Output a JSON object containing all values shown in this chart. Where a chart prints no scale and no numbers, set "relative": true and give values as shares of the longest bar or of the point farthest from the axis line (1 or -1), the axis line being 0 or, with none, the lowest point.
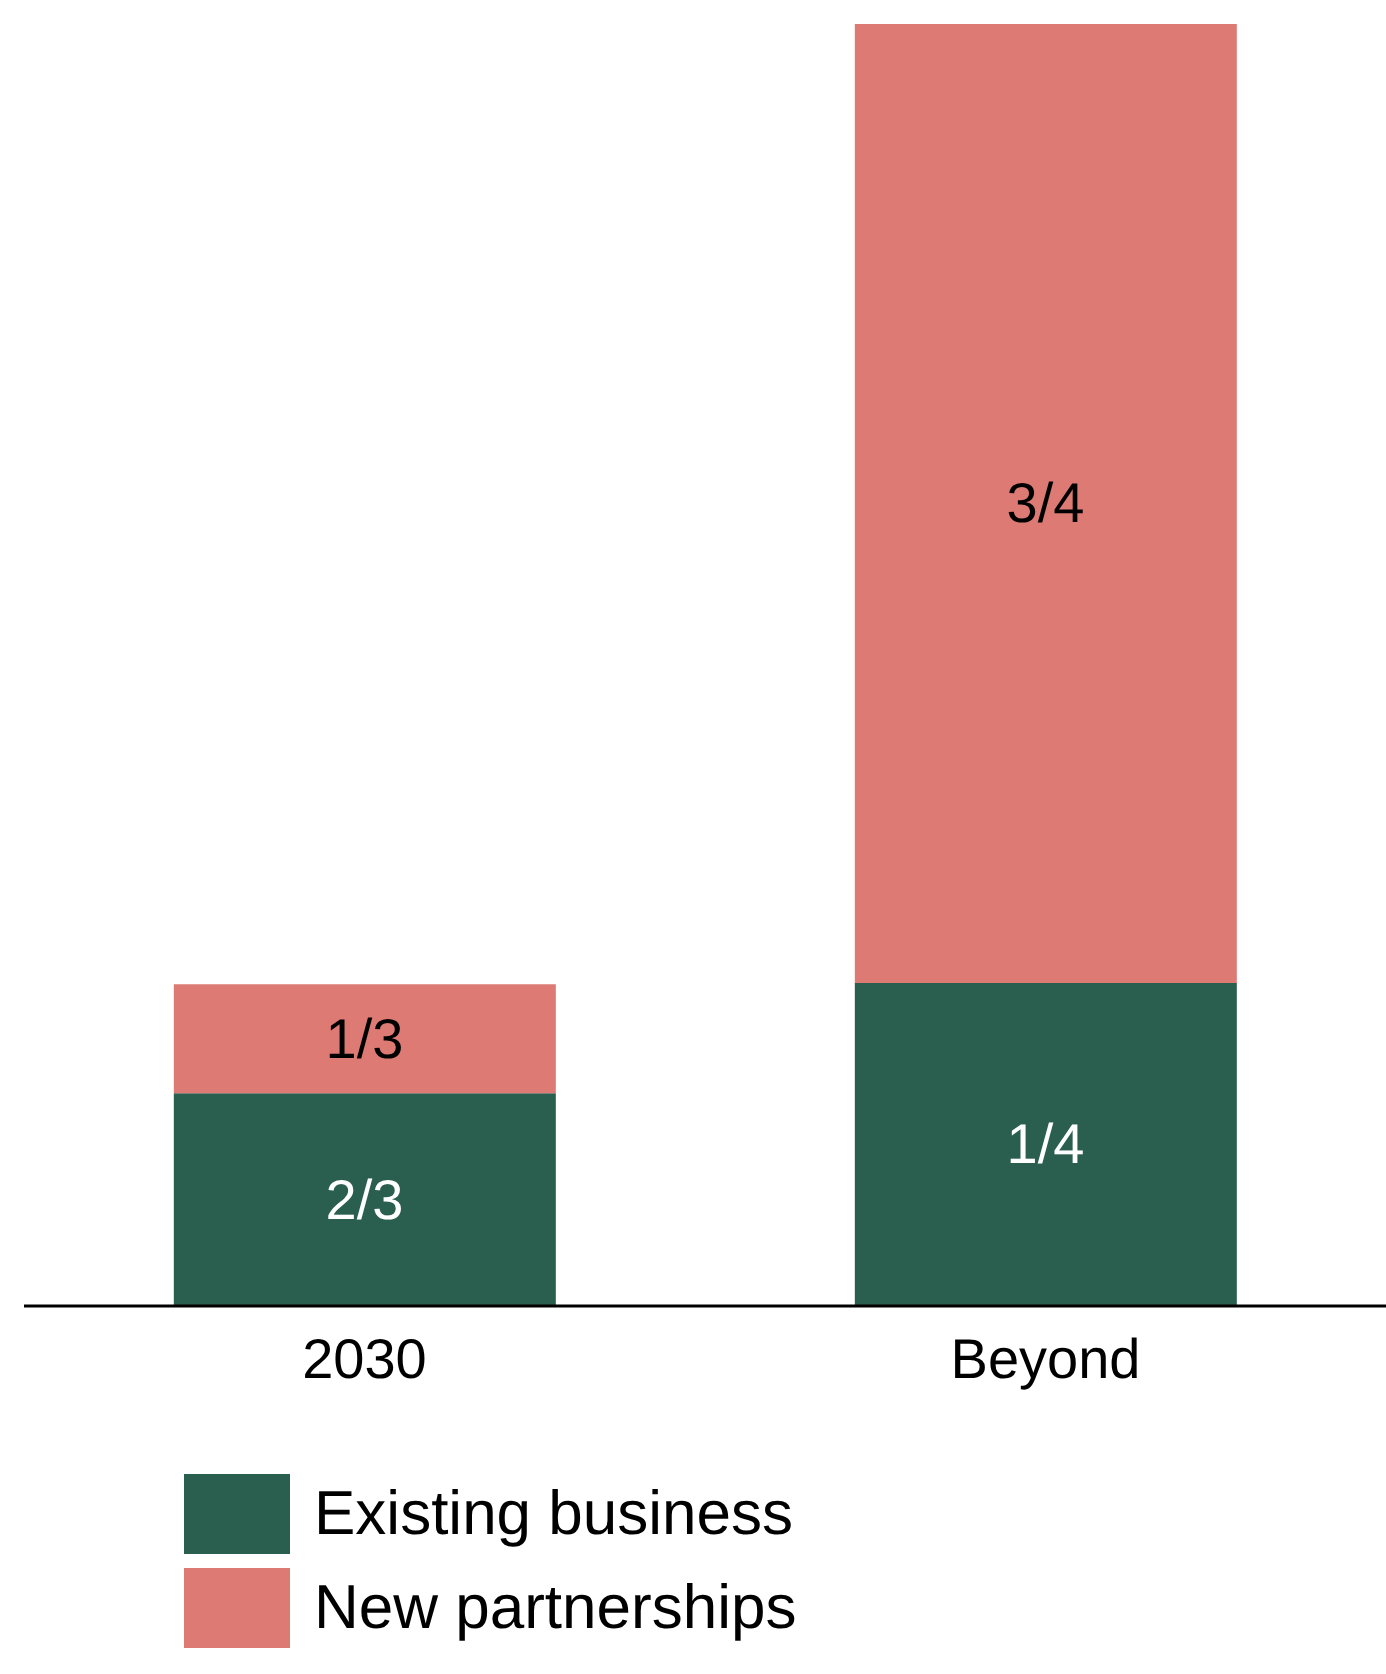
{
  "chart_data": {
    "type": "bar",
    "stacked": true,
    "relative": true,
    "categories": [
      "2030",
      "Beyond"
    ],
    "series": [
      {
        "name": "Existing business",
        "color": "#2a5e4e",
        "values": [
          0.166,
          0.252
        ]
      },
      {
        "name": "New partnerships",
        "color": "#dc7a73",
        "values": [
          0.085,
          0.748
        ]
      }
    ],
    "annotations": [
      "2/3",
      "1/3",
      "1/4",
      "3/4"
    ],
    "legend": "bottom left"
  }
}
